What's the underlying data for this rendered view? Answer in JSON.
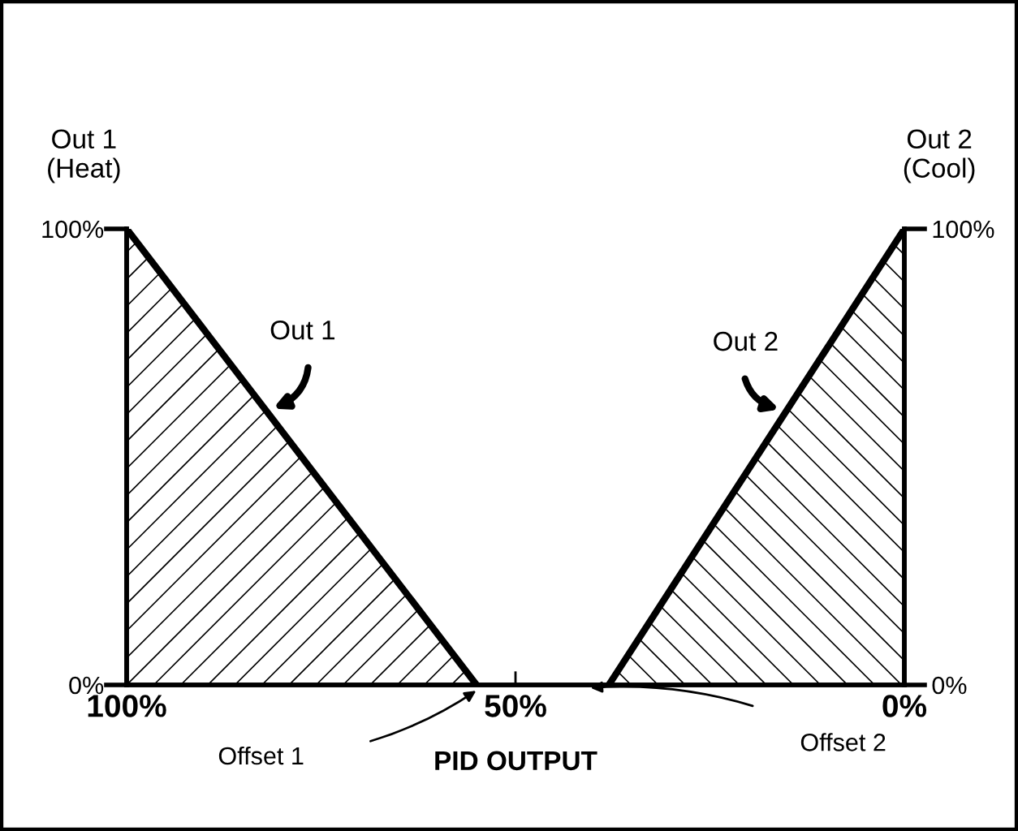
{
  "chart_data": {
    "type": "area",
    "xlabel": "PID OUTPUT",
    "ylabel": "Out 1\n(Heat)",
    "y2label": "Out 2\n(Cool)",
    "series": [
      {
        "name": "Out 1",
        "color": "#000000",
        "x": [
          100,
          55
        ],
        "values": [
          100,
          0
        ]
      },
      {
        "name": "Out 2",
        "color": "#000000",
        "x": [
          38,
          0
        ],
        "values": [
          0,
          100
        ],
        "axis": "y2"
      }
    ],
    "xlim": [
      100,
      0
    ],
    "xticks": [
      {
        "value": 100,
        "label": "100%"
      },
      {
        "value": 50,
        "label": "50%"
      },
      {
        "value": 0,
        "label": "0%"
      }
    ],
    "ylim": [
      0,
      100
    ],
    "yticks": [
      {
        "value": 0,
        "label": "0%"
      },
      {
        "value": 100,
        "label": "100%"
      }
    ],
    "y2lim": [
      0,
      100
    ],
    "y2ticks": [
      {
        "value": 0,
        "label": "0%"
      },
      {
        "value": 100,
        "label": "100%"
      }
    ],
    "annotations": [
      "Offset 1",
      "Offset 2"
    ],
    "grid": false,
    "legend": false
  }
}
